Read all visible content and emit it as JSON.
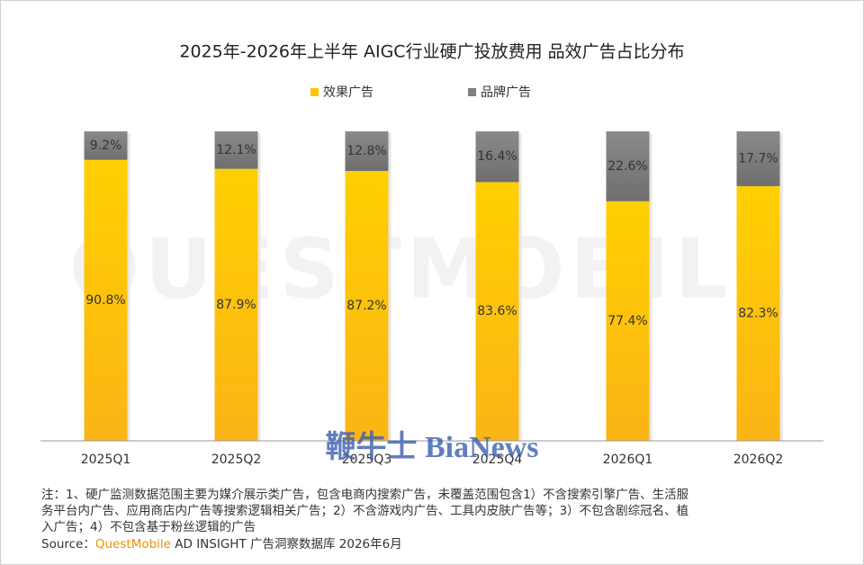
{
  "chart_data": {
    "type": "stacked-bar",
    "title": "2025年-2026年上半年 AIGC行业硬广投放费用 品效广告占比分布",
    "categories": [
      "2025Q1",
      "2025Q2",
      "2025Q3",
      "2025Q4",
      "2026Q1",
      "2026Q2"
    ],
    "series": [
      {
        "name": "效果广告",
        "color": "#fdc300",
        "values": [
          90.8,
          87.9,
          87.2,
          83.6,
          77.4,
          82.3
        ],
        "value_labels": [
          "90.8%",
          "87.9%",
          "87.2%",
          "83.6%",
          "77.4%",
          "82.3%"
        ]
      },
      {
        "name": "品牌广告",
        "color": "#808080",
        "values": [
          9.2,
          12.1,
          12.8,
          16.4,
          22.6,
          17.7
        ],
        "value_labels": [
          "9.2%",
          "12.1%",
          "12.8%",
          "16.4%",
          "22.6%",
          "17.7%"
        ]
      }
    ],
    "ylim": [
      0,
      100
    ],
    "legend": "top",
    "notes": [
      "注：1、硬广监测数据范围主要为媒介展示类广告，包含电商内搜索广告，未覆盖范围包含1）不含搜索引擎广告、生活服",
      "务平台内广告、应用商店内广告等搜索逻辑相关广告；2）不含游戏内广告、工具内皮肤广告等；3）不包含剧综冠名、植",
      "入广告；4）不包含基于粉丝逻辑的广告"
    ],
    "source": {
      "label": "Source：",
      "brand": "QuestMobile",
      "rest": " AD INSIGHT 广告洞察数据库 2026年6月"
    },
    "watermarks": [
      "QUESTMOBILE",
      "鞭牛士 BiaNews"
    ]
  }
}
